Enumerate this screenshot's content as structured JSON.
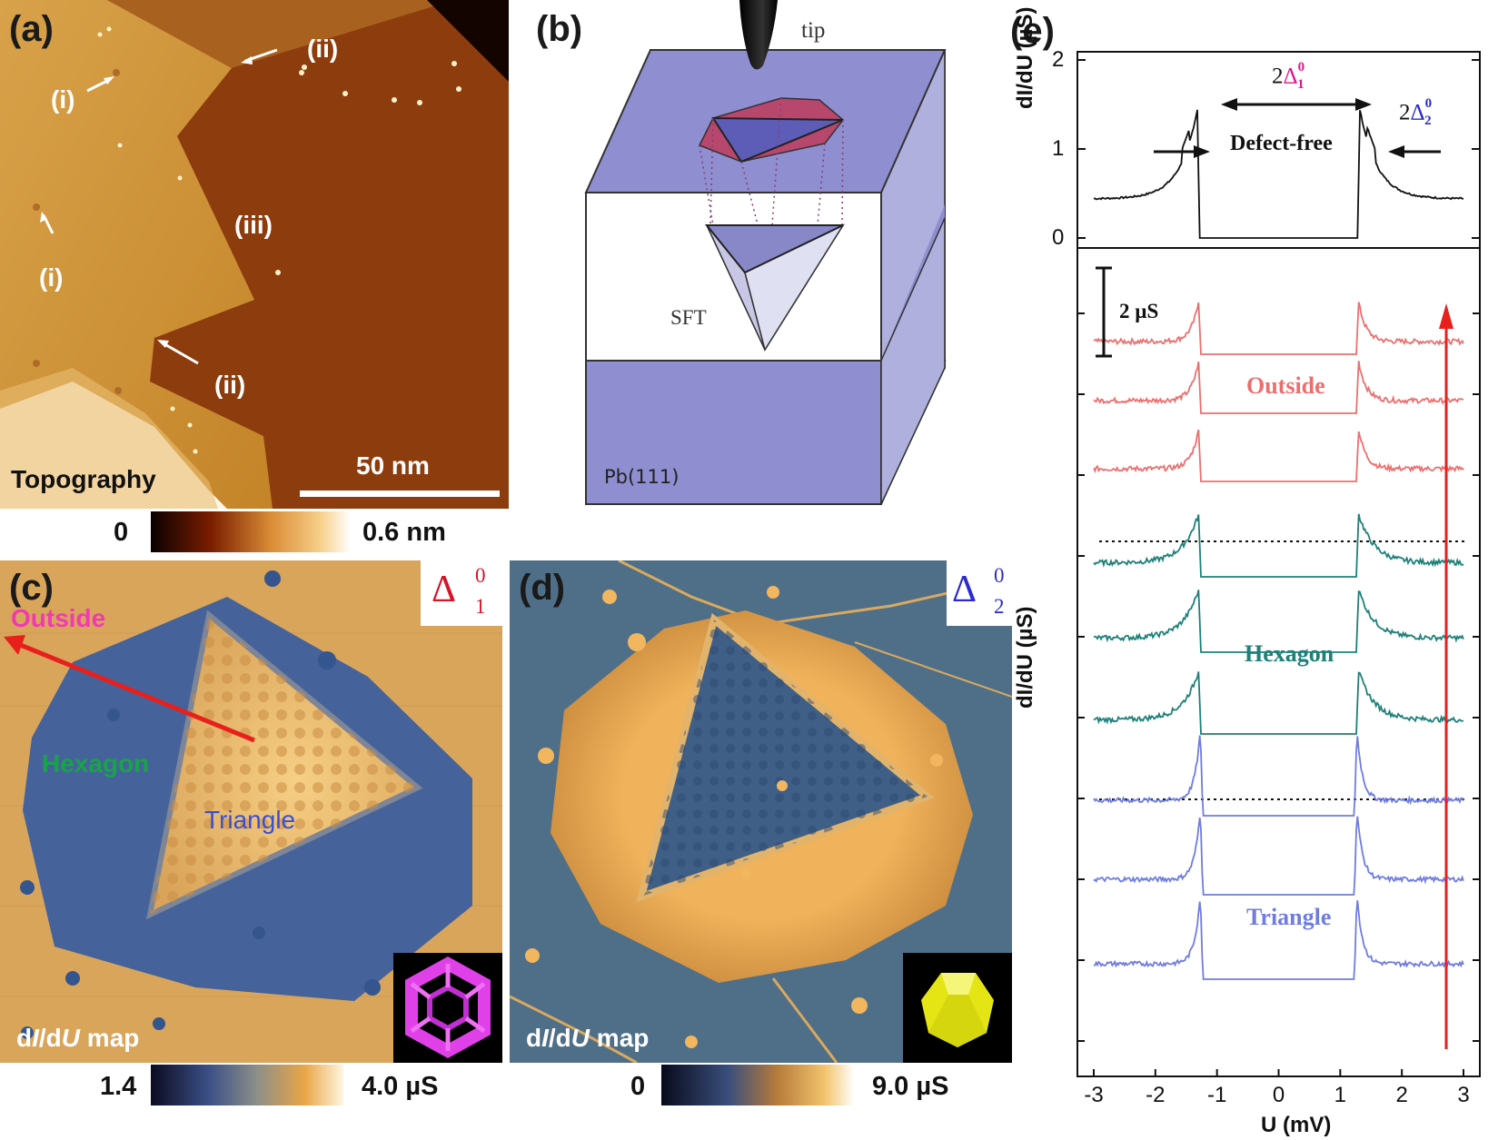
{
  "panel_a": {
    "label": "(a)",
    "markers": [
      "(i)",
      "(i)",
      "(ii)",
      "(ii)",
      "(iii)"
    ],
    "scale_bar": "50 nm",
    "caption": "Topography",
    "colorbar": {
      "min": "0",
      "max": "0.6 nm"
    }
  },
  "panel_b": {
    "label": "(b)",
    "tip": "tip",
    "sft": "SFT",
    "substrate": "Pb(111)"
  },
  "panel_c": {
    "label": "(c)",
    "gap_symbol": "Δ",
    "gap_sup": "0",
    "gap_sub": "1",
    "outside": "Outside",
    "hexagon": "Hexagon",
    "triangle": "Triangle",
    "map_label_prefix": "d",
    "map_label_i": "I",
    "map_label_mid": "/d",
    "map_label_u": "U",
    "map_label_suffix": " map",
    "colorbar": {
      "min": "1.4",
      "max": "4.0 µS"
    }
  },
  "panel_d": {
    "label": "(d)",
    "gap_symbol": "Δ",
    "gap_sup": "0",
    "gap_sub": "2",
    "map_label_prefix": "d",
    "map_label_i": "I",
    "map_label_mid": "/d",
    "map_label_u": "U",
    "map_label_suffix": " map",
    "colorbar": {
      "min": "0",
      "max": "9.0 µS"
    }
  },
  "panel_e": {
    "label": "(e)",
    "top_ylabel": "dI/dU (µS)",
    "bottom_ylabel": "dI/dU (µS)",
    "xlabel": "U (mV)",
    "top_yticks": [
      "0",
      "1",
      "2"
    ],
    "xticks": [
      "-3",
      "-2",
      "-1",
      "0",
      "1",
      "2",
      "3"
    ],
    "defect_free": "Defect-free",
    "gap1_prefix": "2",
    "gap1_symbol": "Δ",
    "gap1_sup": "0",
    "gap1_sub": "1",
    "gap2_prefix": "2",
    "gap2_symbol": "Δ",
    "gap2_sup": "0",
    "gap2_sub": "2",
    "scale_label": "2 µS",
    "group_outside": "Outside",
    "group_hexagon": "Hexagon",
    "group_triangle": "Triangle"
  },
  "colors": {
    "outside": "#ec6f6f",
    "hexagon": "#1e8078",
    "triangle": "#6f7ce0",
    "defect_free": "#111111",
    "arrow": "#e8201c",
    "magenta": "#e0158a",
    "blue": "#2b2bd0"
  },
  "chart_data": {
    "type": "line",
    "xlabel": "U (mV)",
    "ylabel": "dI/dU (µS)",
    "xlim": [
      -3,
      3
    ],
    "top_ylim": [
      0,
      2
    ],
    "series": [
      {
        "name": "Defect-free",
        "peak_mV": 1.3,
        "inner_peak_mV": 1.45,
        "baseline_uS": 0.45,
        "peak_uS": 1.45
      },
      {
        "name": "Outside",
        "count": 3,
        "peak_mV": 1.3
      },
      {
        "name": "Hexagon",
        "count": 3,
        "peak_mV": 1.5
      },
      {
        "name": "Triangle",
        "count": 3,
        "peak_mV": 1.25
      }
    ]
  }
}
